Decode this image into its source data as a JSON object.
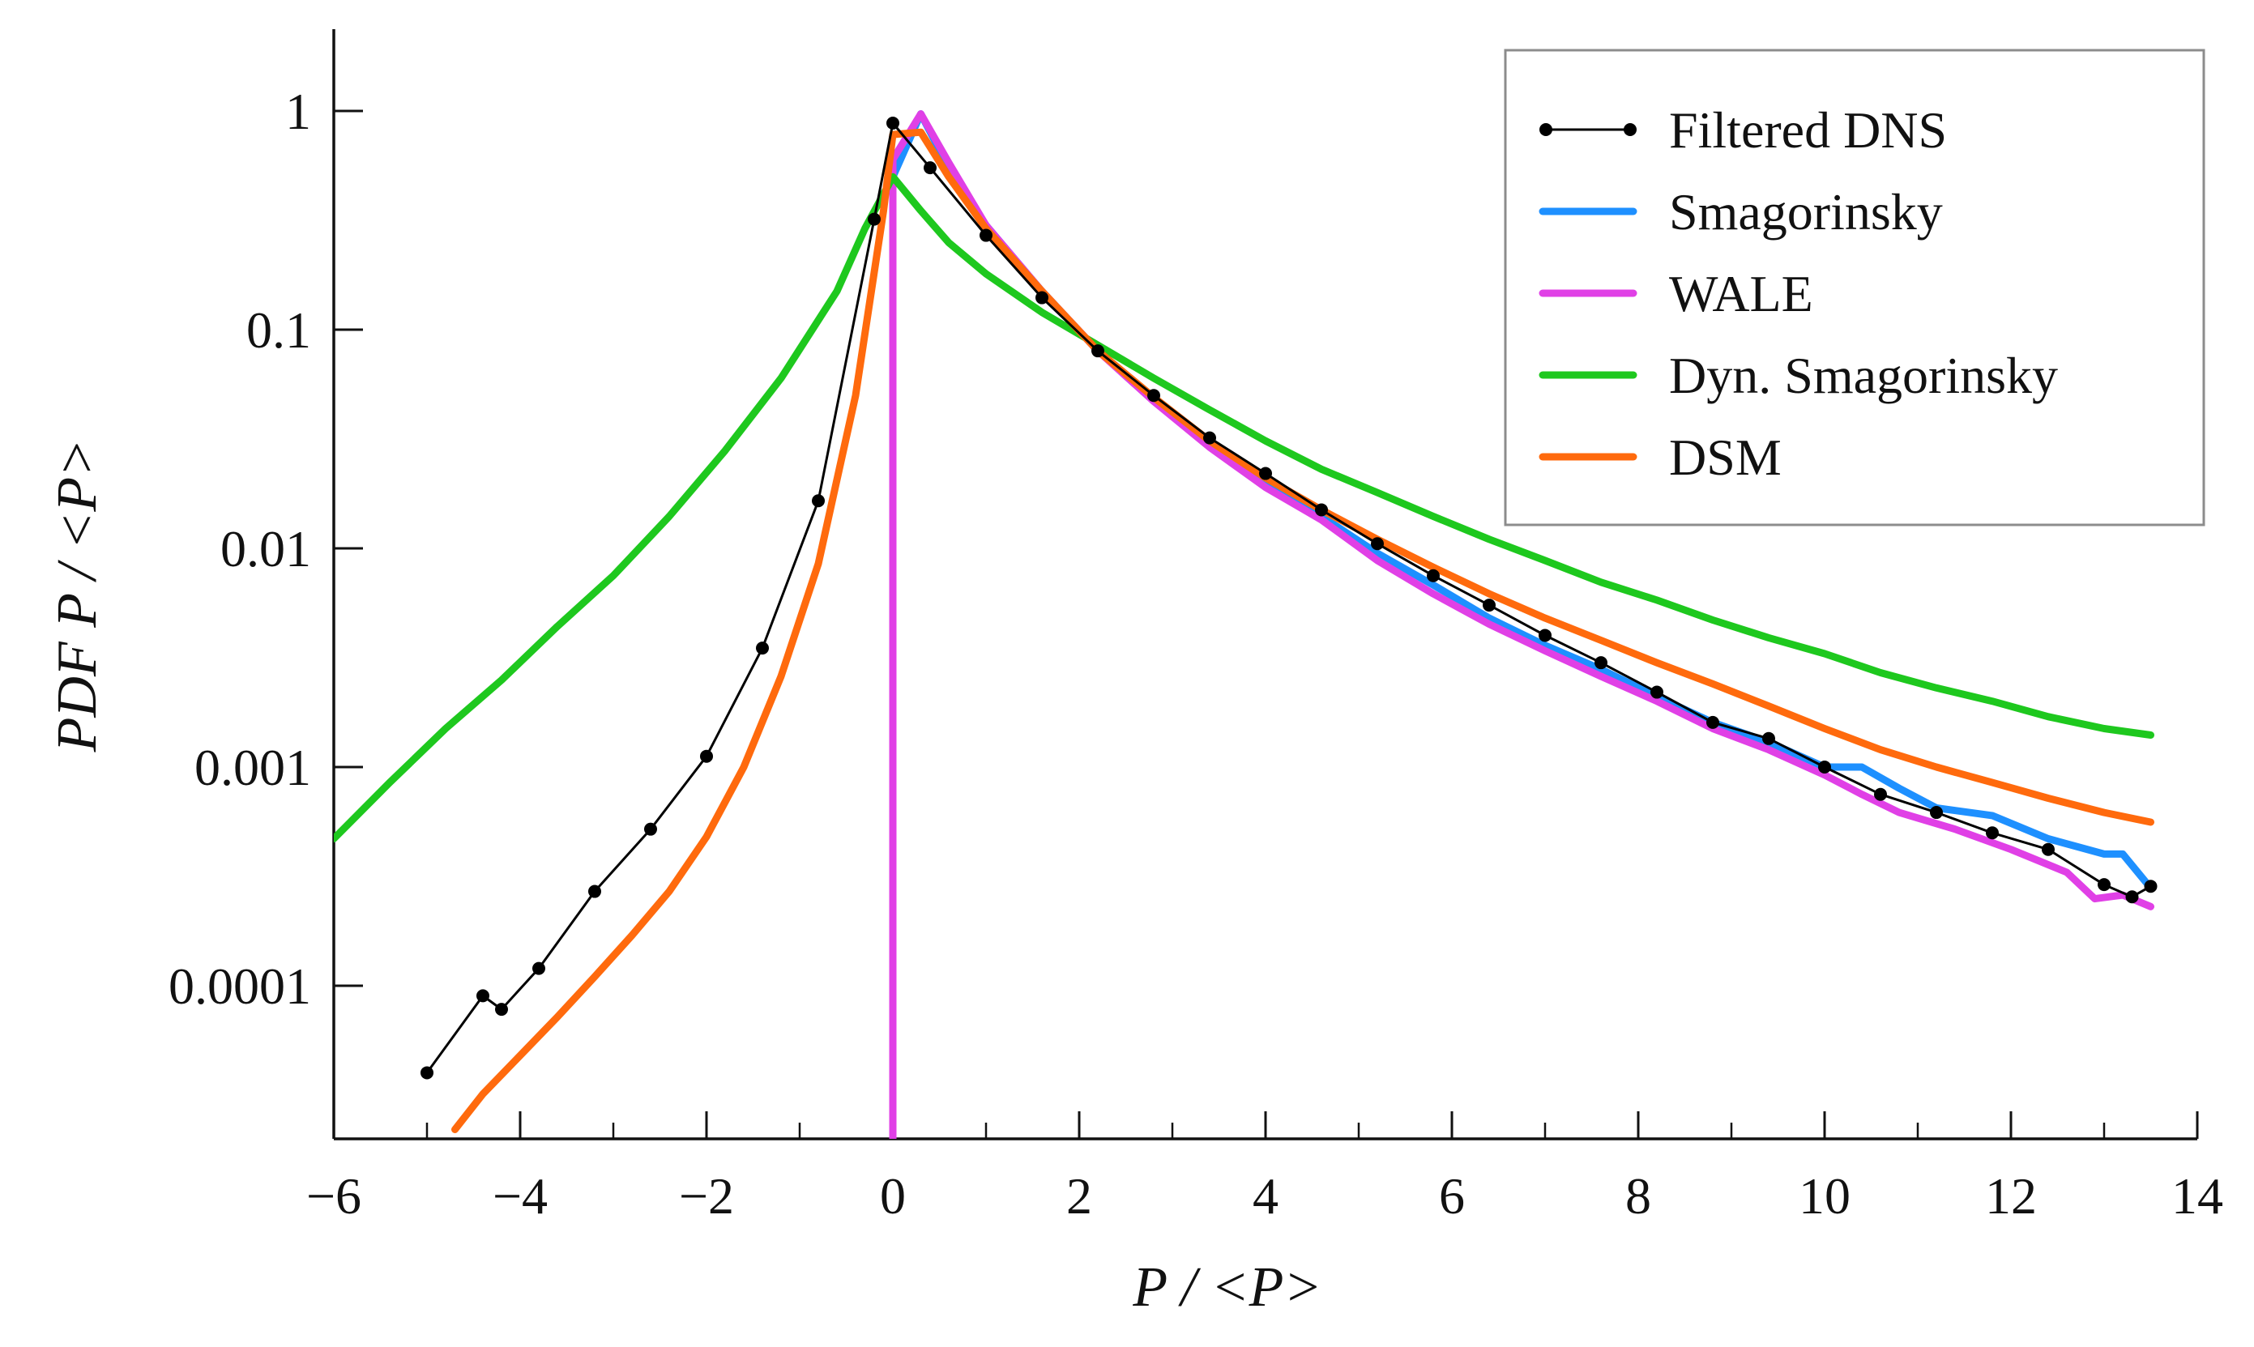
{
  "chart_data": {
    "type": "line",
    "xlabel": "P / <P>",
    "ylabel": "PDF  P / <P>",
    "xlim": [
      -6,
      14
    ],
    "ylim_log10": [
      -4.7,
      0.3
    ],
    "y_scale": "log",
    "x_ticks": [
      {
        "value": -6,
        "label": "−6"
      },
      {
        "value": -4,
        "label": "−4"
      },
      {
        "value": -2,
        "label": "−2"
      },
      {
        "value": 0,
        "label": "0"
      },
      {
        "value": 2,
        "label": "2"
      },
      {
        "value": 4,
        "label": "4"
      },
      {
        "value": 6,
        "label": "6"
      },
      {
        "value": 8,
        "label": "8"
      },
      {
        "value": 10,
        "label": "10"
      },
      {
        "value": 12,
        "label": "12"
      },
      {
        "value": 14,
        "label": "14"
      }
    ],
    "y_ticks": [
      {
        "value": 1,
        "label": "1"
      },
      {
        "value": 0.1,
        "label": "0.1"
      },
      {
        "value": 0.01,
        "label": "0.01"
      },
      {
        "value": 0.001,
        "label": "0.001"
      },
      {
        "value": 0.0001,
        "label": "0.0001"
      }
    ],
    "legend_position": "top-right",
    "series": [
      {
        "name": "Filtered DNS",
        "color": "#000000",
        "style": "line-markers",
        "x": [
          -5.0,
          -4.4,
          -4.2,
          -3.8,
          -3.2,
          -2.6,
          -2.0,
          -1.4,
          -0.8,
          -0.2,
          0.0,
          0.4,
          1.0,
          1.6,
          2.2,
          2.8,
          3.4,
          4.0,
          4.6,
          5.2,
          5.8,
          6.4,
          7.0,
          7.6,
          8.2,
          8.8,
          9.4,
          10.0,
          10.6,
          11.2,
          11.8,
          12.4,
          13.0,
          13.3,
          13.5
        ],
        "y": [
          4e-05,
          9e-05,
          7.8e-05,
          0.00012,
          0.00027,
          0.00052,
          0.00112,
          0.0035,
          0.0165,
          0.32,
          0.88,
          0.55,
          0.27,
          0.14,
          0.08,
          0.05,
          0.032,
          0.022,
          0.015,
          0.0105,
          0.0075,
          0.0055,
          0.004,
          0.003,
          0.0022,
          0.0016,
          0.00135,
          0.001,
          0.00075,
          0.00062,
          0.0005,
          0.00042,
          0.00029,
          0.000255,
          0.000285
        ]
      },
      {
        "name": "Smagorinsky",
        "color": "#1e90ff",
        "style": "line",
        "x": [
          0.0,
          0.3,
          0.6,
          1.0,
          1.6,
          2.2,
          2.8,
          3.4,
          4.0,
          4.6,
          5.2,
          5.8,
          6.4,
          7.0,
          7.6,
          8.2,
          8.8,
          9.4,
          10.0,
          10.4,
          10.8,
          11.2,
          11.8,
          12.4,
          13.0,
          13.2,
          13.5
        ],
        "y": [
          0.5,
          0.97,
          0.55,
          0.3,
          0.15,
          0.08,
          0.048,
          0.03,
          0.02,
          0.014,
          0.0095,
          0.0068,
          0.0048,
          0.0036,
          0.0028,
          0.0021,
          0.0016,
          0.0013,
          0.001,
          0.001,
          0.0008,
          0.00065,
          0.0006,
          0.00047,
          0.0004,
          0.0004,
          0.00028
        ]
      },
      {
        "name": "WALE",
        "color": "#e040e6",
        "style": "line",
        "x": [
          0.0,
          0.0,
          0.3,
          0.6,
          1.0,
          1.6,
          2.2,
          2.8,
          3.4,
          4.0,
          4.6,
          5.2,
          5.8,
          6.4,
          7.0,
          7.6,
          8.2,
          8.8,
          9.4,
          10.0,
          10.4,
          10.8,
          11.4,
          12.0,
          12.6,
          12.9,
          13.2,
          13.5
        ],
        "y": [
          2e-05,
          0.6,
          0.97,
          0.58,
          0.3,
          0.15,
          0.08,
          0.047,
          0.029,
          0.019,
          0.0135,
          0.0088,
          0.0062,
          0.0045,
          0.0034,
          0.0026,
          0.002,
          0.0015,
          0.0012,
          0.00092,
          0.00075,
          0.00062,
          0.00052,
          0.00042,
          0.00033,
          0.00025,
          0.00026,
          0.00023
        ]
      },
      {
        "name": "Dyn. Smagorinsky",
        "color": "#1ec81e",
        "style": "line",
        "x": [
          -6.0,
          -5.4,
          -4.8,
          -4.2,
          -3.6,
          -3.0,
          -2.4,
          -1.8,
          -1.2,
          -0.6,
          -0.3,
          0.0,
          0.3,
          0.6,
          1.0,
          1.6,
          2.2,
          2.8,
          3.4,
          4.0,
          4.6,
          5.2,
          5.8,
          6.4,
          7.0,
          7.6,
          8.2,
          8.8,
          9.4,
          10.0,
          10.6,
          11.2,
          11.8,
          12.4,
          13.0,
          13.5
        ],
        "y": [
          0.00047,
          0.00085,
          0.0015,
          0.0025,
          0.0044,
          0.0075,
          0.014,
          0.028,
          0.06,
          0.15,
          0.29,
          0.5,
          0.35,
          0.25,
          0.18,
          0.12,
          0.085,
          0.06,
          0.043,
          0.031,
          0.023,
          0.018,
          0.014,
          0.011,
          0.0088,
          0.007,
          0.0058,
          0.0047,
          0.0039,
          0.0033,
          0.0027,
          0.0023,
          0.002,
          0.0017,
          0.0015,
          0.0014
        ]
      },
      {
        "name": "DSM",
        "color": "#ff6a0d",
        "style": "line",
        "x": [
          -4.7,
          -4.4,
          -4.0,
          -3.6,
          -3.2,
          -2.8,
          -2.4,
          -2.0,
          -1.6,
          -1.2,
          -0.8,
          -0.4,
          -0.1,
          0.0,
          0.3,
          0.6,
          1.0,
          1.6,
          2.2,
          2.8,
          3.4,
          4.0,
          4.6,
          5.2,
          5.8,
          6.4,
          7.0,
          7.6,
          8.2,
          8.8,
          9.4,
          10.0,
          10.6,
          11.2,
          11.8,
          12.4,
          13.0,
          13.5
        ],
        "y": [
          2.2e-05,
          3.2e-05,
          4.8e-05,
          7.2e-05,
          0.00011,
          0.00017,
          0.00027,
          0.00048,
          0.001,
          0.0026,
          0.0085,
          0.05,
          0.35,
          0.78,
          0.8,
          0.5,
          0.29,
          0.15,
          0.08,
          0.049,
          0.031,
          0.021,
          0.015,
          0.011,
          0.0082,
          0.0062,
          0.0048,
          0.0038,
          0.003,
          0.0024,
          0.0019,
          0.0015,
          0.0012,
          0.001,
          0.00085,
          0.00072,
          0.00062,
          0.00056
        ]
      }
    ]
  }
}
